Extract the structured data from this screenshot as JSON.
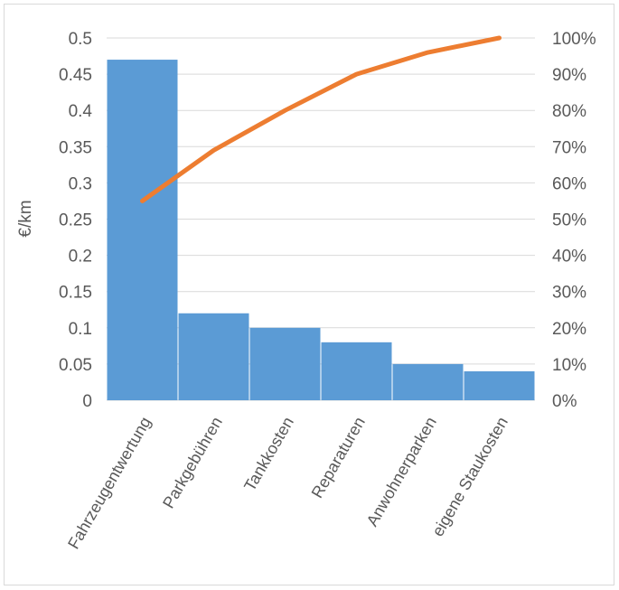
{
  "chart_data": {
    "type": "bar",
    "title": "",
    "ylabel": "€/km",
    "y2label": "",
    "categories": [
      "Fahrzeugentwertung",
      "Parkgebühren",
      "Tankkosten",
      "Reparaturen",
      "Anwohnerparken",
      "eigene Staukosten"
    ],
    "series": [
      {
        "type": "bar",
        "color": "#5B9BD5",
        "values": [
          0.47,
          0.12,
          0.1,
          0.08,
          0.05,
          0.04
        ]
      },
      {
        "type": "line",
        "axis": "secondary",
        "color": "#ED7D31",
        "values": [
          0.55,
          0.69,
          0.8,
          0.9,
          0.96,
          1.0
        ]
      }
    ],
    "ylim": [
      0,
      0.5
    ],
    "y2lim": [
      0,
      1
    ],
    "yticks": [
      "0",
      "0.05",
      "0.1",
      "0.15",
      "0.2",
      "0.25",
      "0.3",
      "0.35",
      "0.4",
      "0.45",
      "0.5"
    ],
    "y2ticks": [
      "0%",
      "10%",
      "20%",
      "30%",
      "40%",
      "50%",
      "60%",
      "70%",
      "80%",
      "90%",
      "100%"
    ],
    "grid": true,
    "legend": "none"
  }
}
